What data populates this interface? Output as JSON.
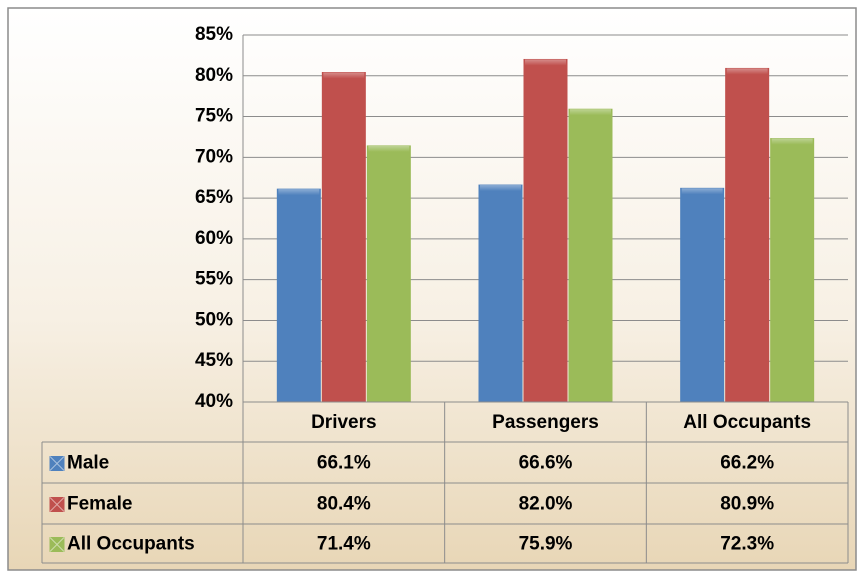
{
  "chart_data": {
    "type": "bar",
    "categories": [
      "Drivers",
      "Passengers",
      "All Occupants"
    ],
    "series": [
      {
        "name": "Male",
        "color": "#4f81bd",
        "values": [
          66.1,
          66.6,
          66.2
        ],
        "value_labels": [
          "66.1%",
          "66.6%",
          "66.2%"
        ]
      },
      {
        "name": "Female",
        "color": "#c0504d",
        "values": [
          80.4,
          82.0,
          80.9
        ],
        "value_labels": [
          "80.4%",
          "82.0%",
          "80.9%"
        ]
      },
      {
        "name": "All Occupants",
        "color": "#9bbb59",
        "values": [
          71.4,
          75.9,
          72.3
        ],
        "value_labels": [
          "71.4%",
          "75.9%",
          "72.3%"
        ]
      }
    ],
    "ylim": [
      40,
      85
    ],
    "yticks": [
      {
        "value": 40,
        "label": "40%"
      },
      {
        "value": 45,
        "label": "45%"
      },
      {
        "value": 50,
        "label": "50%"
      },
      {
        "value": 55,
        "label": "55%"
      },
      {
        "value": 60,
        "label": "60%"
      },
      {
        "value": 65,
        "label": "65%"
      },
      {
        "value": 70,
        "label": "70%"
      },
      {
        "value": 75,
        "label": "75%"
      },
      {
        "value": 80,
        "label": "80%"
      },
      {
        "value": 85,
        "label": "85%"
      }
    ],
    "grid": true
  }
}
